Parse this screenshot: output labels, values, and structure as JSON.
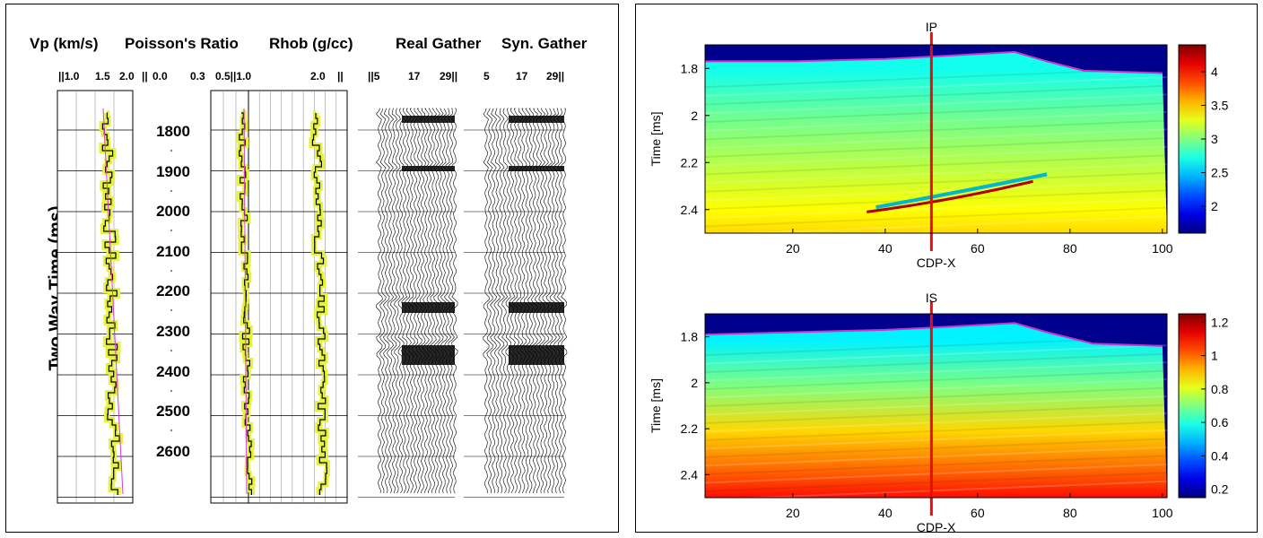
{
  "left_panel": {
    "headers": [
      "Vp (km/s)",
      "Poisson's Ratio",
      "Rhob (g/cc)",
      "Real Gather",
      "Syn. Gather"
    ],
    "scale_labels": [
      "||1.0",
      "1.5",
      "2.0",
      "||",
      "0.0",
      "0.3",
      "0.5||1.0",
      "2.0",
      "||",
      "||5",
      "17",
      "29||",
      "5",
      "17",
      "29||"
    ],
    "y_axis_label": "Two Way Time (ms)",
    "time_labels": [
      "1800",
      "1900",
      "2000",
      "2100",
      "2200",
      "2300",
      "2400",
      "2500",
      "2600"
    ]
  },
  "chart_data": [
    {
      "type": "heatmap",
      "title": "IP",
      "xlabel": "CDP-X",
      "ylabel": "Time [ms]",
      "xlim": [
        1,
        101
      ],
      "ylim": [
        1.7,
        2.5
      ],
      "x_ticks": [
        20,
        40,
        60,
        80,
        100
      ],
      "y_ticks": [
        1.8,
        2,
        2.2,
        2.4
      ],
      "y_tick_labels": [
        "1.8",
        "2",
        "2.2",
        "2.4"
      ],
      "colorbar_ticks": [
        2,
        2.5,
        3,
        3.5,
        4
      ],
      "colorbar_tick_labels": [
        "2",
        "2.5",
        "3",
        "3.5",
        "4"
      ],
      "colorbar_range": [
        1.6,
        4.4
      ],
      "well_location_x": 50,
      "horizon_time": [
        [
          1,
          1.77
        ],
        [
          20,
          1.77
        ],
        [
          40,
          1.76
        ],
        [
          50,
          1.75
        ],
        [
          68,
          1.73
        ],
        [
          75,
          1.77
        ],
        [
          83,
          1.81
        ],
        [
          100,
          1.82
        ]
      ],
      "layer_values": [
        [
          1.8,
          2.7
        ],
        [
          2.0,
          2.95
        ],
        [
          2.2,
          3.15
        ],
        [
          2.4,
          3.35
        ],
        [
          2.5,
          3.45
        ]
      ]
    },
    {
      "type": "heatmap",
      "title": "IS",
      "xlabel": "CDP-X",
      "ylabel": "Time [ms]",
      "xlim": [
        1,
        101
      ],
      "ylim": [
        1.7,
        2.5
      ],
      "x_ticks": [
        20,
        40,
        60,
        80,
        100
      ],
      "y_ticks": [
        1.8,
        2,
        2.2,
        2.4
      ],
      "y_tick_labels": [
        "1.8",
        "2",
        "2.2",
        "2.4"
      ],
      "colorbar_ticks": [
        0.2,
        0.4,
        0.6,
        0.8,
        1,
        1.2
      ],
      "colorbar_tick_labels": [
        "0.2",
        "0.4",
        "0.6",
        "0.8",
        "1",
        "1.2"
      ],
      "colorbar_range": [
        0.15,
        1.25
      ],
      "well_location_x": 50,
      "horizon_time": [
        [
          1,
          1.79
        ],
        [
          20,
          1.78
        ],
        [
          40,
          1.77
        ],
        [
          50,
          1.76
        ],
        [
          68,
          1.74
        ],
        [
          75,
          1.78
        ],
        [
          85,
          1.83
        ],
        [
          100,
          1.84
        ]
      ],
      "layer_values": [
        [
          1.8,
          0.55
        ],
        [
          2.0,
          0.7
        ],
        [
          2.2,
          0.88
        ],
        [
          2.4,
          1.02
        ],
        [
          2.5,
          1.1
        ]
      ]
    }
  ],
  "colors": {
    "well_line": "#e01010",
    "horizon": "#cc33cc",
    "log_fill": "#e6f33a"
  }
}
